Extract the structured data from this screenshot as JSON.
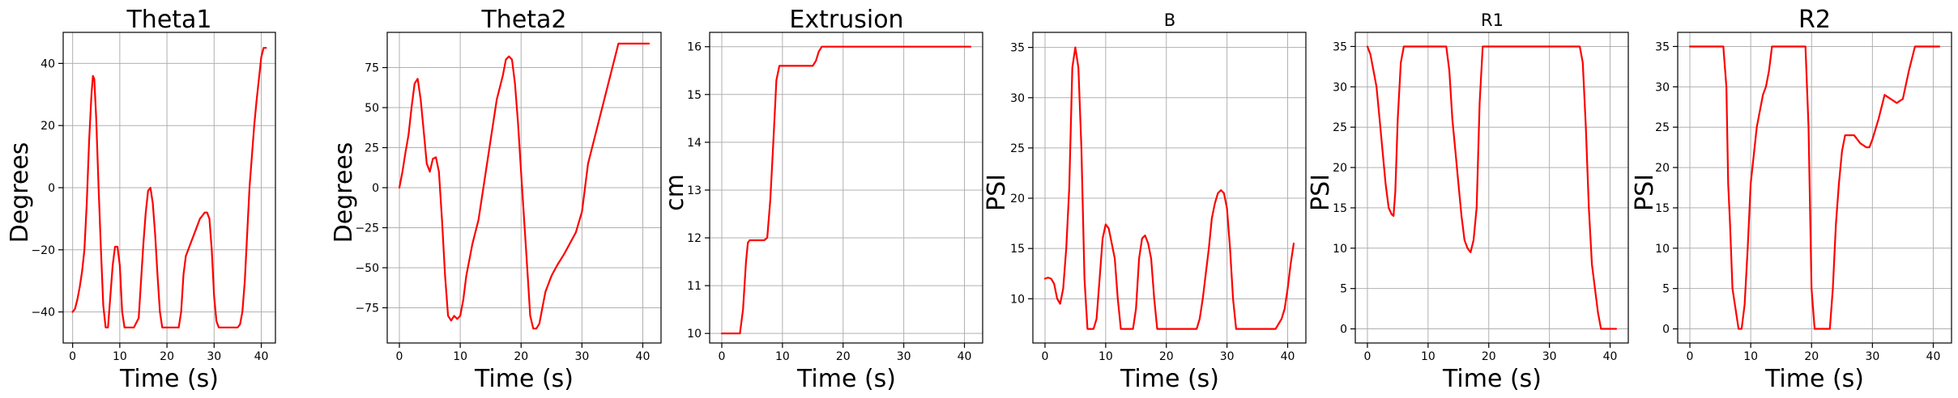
{
  "figure": {
    "line_color": "#ff0000",
    "grid_color": "#b0b0b0"
  },
  "chart_data": [
    {
      "type": "line",
      "title": "Theta1",
      "xlabel": "Time (s)",
      "ylabel": "Degrees",
      "xlim": [
        -2,
        43
      ],
      "ylim": [
        -50,
        50
      ],
      "grid": true,
      "xticks": [
        0,
        10,
        20,
        30,
        40
      ],
      "yticks": [
        -40,
        -20,
        0,
        20,
        40
      ],
      "ytick_labels": [
        "−40",
        "−20",
        "0",
        "20",
        "40"
      ],
      "series": [
        {
          "x": [
            0,
            0.5,
            1,
            1.5,
            2,
            2.5,
            3,
            3.5,
            4,
            4.3,
            4.6,
            5,
            5.5,
            6,
            6.5,
            7,
            7.5,
            8,
            8.5,
            9,
            9.5,
            10,
            10.5,
            11,
            11.5,
            12,
            13,
            14,
            14.5,
            15,
            15.5,
            16,
            16.5,
            17,
            17.5,
            18,
            18.5,
            19,
            20,
            21,
            22,
            22.5,
            23,
            23.5,
            24,
            25,
            26,
            27,
            27.5,
            28,
            28.5,
            29,
            29.5,
            30,
            30.5,
            31,
            32,
            33,
            34,
            35,
            35.5,
            36,
            36.5,
            37,
            37.5,
            38,
            38.5,
            39,
            39.5,
            40,
            40.5,
            41
          ],
          "y": [
            -40,
            -39,
            -36,
            -32,
            -27,
            -20,
            -5,
            15,
            30,
            36,
            35,
            22,
            0,
            -20,
            -38,
            -45,
            -45,
            -35,
            -25,
            -19,
            -19,
            -25,
            -40,
            -45,
            -45,
            -45,
            -45,
            -42,
            -30,
            -18,
            -8,
            -1,
            0,
            -5,
            -15,
            -28,
            -40,
            -45,
            -45,
            -45,
            -45,
            -45,
            -40,
            -28,
            -22,
            -18,
            -14,
            -10,
            -9,
            -8,
            -8,
            -10,
            -20,
            -35,
            -43,
            -45,
            -45,
            -45,
            -45,
            -45,
            -44,
            -40,
            -30,
            -15,
            0,
            10,
            20,
            28,
            35,
            42,
            45,
            45
          ]
        }
      ]
    },
    {
      "type": "line",
      "title": "Theta2",
      "xlabel": "Time (s)",
      "ylabel": "Degrees",
      "xlim": [
        -2,
        43
      ],
      "ylim": [
        -97,
        97
      ],
      "grid": true,
      "xticks": [
        0,
        10,
        20,
        30,
        40
      ],
      "yticks": [
        -75,
        -50,
        -25,
        0,
        25,
        50,
        75
      ],
      "ytick_labels": [
        "−75",
        "−50",
        "−25",
        "0",
        "25",
        "50",
        "75"
      ],
      "series": [
        {
          "x": [
            0,
            0.5,
            1,
            1.5,
            2,
            2.5,
            3,
            3.5,
            4,
            4.5,
            5,
            5.5,
            6,
            6.5,
            7,
            7.5,
            8,
            8.5,
            9,
            9.5,
            10,
            10.5,
            11,
            12,
            13,
            14,
            15,
            16,
            17,
            17.5,
            18,
            18.5,
            19,
            19.5,
            20,
            20.5,
            21,
            21.5,
            22,
            22.5,
            23,
            23.5,
            24,
            25,
            26,
            27,
            28,
            29,
            30,
            31,
            32,
            33,
            34,
            35,
            36,
            36.5,
            37,
            38,
            39,
            40,
            41
          ],
          "y": [
            0,
            10,
            22,
            33,
            50,
            65,
            68,
            55,
            35,
            15,
            10,
            18,
            19,
            10,
            -20,
            -55,
            -80,
            -83,
            -80,
            -82,
            -80,
            -70,
            -55,
            -35,
            -20,
            5,
            30,
            55,
            70,
            80,
            82,
            80,
            65,
            40,
            10,
            -20,
            -50,
            -80,
            -88,
            -88,
            -85,
            -75,
            -65,
            -55,
            -48,
            -42,
            -35,
            -28,
            -15,
            15,
            30,
            45,
            60,
            75,
            90,
            90,
            90,
            90,
            90,
            90,
            90
          ]
        }
      ]
    },
    {
      "type": "line",
      "title": "Extrusion",
      "xlabel": "Time (s)",
      "ylabel": "cm",
      "xlim": [
        -2,
        43
      ],
      "ylim": [
        9.8,
        16.3
      ],
      "grid": true,
      "xticks": [
        0,
        10,
        20,
        30,
        40
      ],
      "yticks": [
        10,
        11,
        12,
        13,
        14,
        15,
        16
      ],
      "ytick_labels": [
        "10",
        "11",
        "12",
        "13",
        "14",
        "15",
        "16"
      ],
      "series": [
        {
          "x": [
            0,
            1,
            2,
            3,
            3.5,
            4,
            4.3,
            4.6,
            5,
            6,
            7,
            7.5,
            8,
            8.5,
            9,
            9.5,
            10,
            11,
            12,
            13,
            14,
            15,
            15.5,
            16,
            16.5,
            17,
            20,
            25,
            30,
            35,
            40,
            41
          ],
          "y": [
            10,
            10,
            10,
            10,
            10.5,
            11.5,
            11.9,
            11.95,
            11.95,
            11.95,
            11.95,
            12,
            12.8,
            14,
            15.3,
            15.6,
            15.6,
            15.6,
            15.6,
            15.6,
            15.6,
            15.6,
            15.7,
            15.9,
            16,
            16,
            16,
            16,
            16,
            16,
            16,
            16
          ]
        }
      ]
    },
    {
      "type": "line",
      "title": "B",
      "xlabel": "Time (s)",
      "ylabel": "PSI",
      "xlim": [
        -2,
        43
      ],
      "ylim": [
        5.6,
        36.5
      ],
      "grid": true,
      "xticks": [
        0,
        10,
        20,
        30,
        40
      ],
      "yticks": [
        10,
        15,
        20,
        25,
        30,
        35
      ],
      "ytick_labels": [
        "10",
        "15",
        "20",
        "25",
        "30",
        "35"
      ],
      "series": [
        {
          "x": [
            0,
            0.5,
            1,
            1.5,
            2,
            2.5,
            3,
            3.5,
            4,
            4.5,
            5,
            5.5,
            6,
            6.5,
            7,
            7.5,
            8,
            8.5,
            9,
            9.5,
            10,
            10.5,
            11,
            11.5,
            12,
            12.5,
            13,
            14,
            14.5,
            15,
            15.5,
            16,
            16.5,
            17,
            17.5,
            18,
            18.5,
            19,
            19.5,
            20,
            21,
            22,
            23,
            24,
            25,
            25.5,
            26,
            27,
            27.5,
            28,
            28.5,
            29,
            29.5,
            30,
            30.5,
            31,
            31.5,
            32,
            33,
            34,
            35,
            36,
            37,
            38,
            38.5,
            39,
            39.5,
            40,
            40.5,
            41
          ],
          "y": [
            12,
            12.1,
            12,
            11.5,
            10,
            9.5,
            11,
            15,
            21,
            33,
            35,
            33,
            25,
            12,
            7,
            7,
            7,
            8,
            12,
            16,
            17.4,
            17,
            15.5,
            14,
            10,
            7,
            7,
            7,
            7,
            9,
            14,
            16,
            16.3,
            15.5,
            14,
            10,
            7,
            7,
            7,
            7,
            7,
            7,
            7,
            7,
            7,
            8,
            10,
            15,
            18,
            19.5,
            20.5,
            20.8,
            20.5,
            19,
            15,
            10,
            7,
            7,
            7,
            7,
            7,
            7,
            7,
            7,
            7.5,
            8,
            9,
            11,
            13.5,
            15.5
          ]
        }
      ]
    },
    {
      "type": "line",
      "title": "R1",
      "xlabel": "Time (s)",
      "ylabel": "PSI",
      "xlim": [
        -2,
        43
      ],
      "ylim": [
        -1.75,
        36.75
      ],
      "grid": true,
      "xticks": [
        0,
        10,
        20,
        30,
        40
      ],
      "yticks": [
        0,
        5,
        10,
        15,
        20,
        25,
        30,
        35
      ],
      "ytick_labels": [
        "0",
        "5",
        "10",
        "15",
        "20",
        "25",
        "30",
        "35"
      ],
      "series": [
        {
          "x": [
            0,
            0.5,
            1,
            1.5,
            2,
            2.5,
            3,
            3.5,
            4,
            4.3,
            4.6,
            5,
            5.5,
            6,
            7,
            8,
            9,
            10,
            11,
            12,
            13,
            13.5,
            14,
            14.5,
            15,
            15.5,
            16,
            16.5,
            17,
            17.5,
            18,
            18.5,
            19,
            20,
            22,
            25,
            28,
            30,
            32,
            34,
            35,
            35.5,
            36,
            36.5,
            37,
            38,
            38.5,
            39,
            40,
            41
          ],
          "y": [
            35,
            34,
            32,
            30,
            26,
            22,
            18,
            15,
            14.2,
            14,
            17,
            26,
            33,
            35,
            35,
            35,
            35,
            35,
            35,
            35,
            35,
            32,
            26,
            22,
            18,
            14,
            11,
            10,
            9.5,
            11,
            15,
            28,
            35,
            35,
            35,
            35,
            35,
            35,
            35,
            35,
            35,
            33,
            25,
            15,
            8,
            2,
            0,
            0,
            0,
            0
          ]
        }
      ]
    },
    {
      "type": "line",
      "title": "R2",
      "xlabel": "Time (s)",
      "ylabel": "PSI",
      "xlim": [
        -2,
        43
      ],
      "ylim": [
        -1.75,
        36.75
      ],
      "grid": true,
      "xticks": [
        0,
        10,
        20,
        30,
        40
      ],
      "yticks": [
        0,
        5,
        10,
        15,
        20,
        25,
        30,
        35
      ],
      "ytick_labels": [
        "0",
        "5",
        "10",
        "15",
        "20",
        "25",
        "30",
        "35"
      ],
      "series": [
        {
          "x": [
            0,
            2,
            4,
            5,
            5.5,
            6,
            6.3,
            6.6,
            7,
            8,
            8.5,
            9,
            9.5,
            10,
            11,
            12,
            12.5,
            13,
            13.5,
            14,
            15,
            16,
            17,
            18,
            19,
            19.5,
            20,
            20.5,
            21,
            22,
            23,
            23.5,
            24,
            24.5,
            25,
            25.5,
            26,
            27,
            28,
            29,
            29.5,
            30,
            31,
            32,
            33,
            34,
            35,
            36,
            37,
            38,
            39,
            40,
            41
          ],
          "y": [
            35,
            35,
            35,
            35,
            35,
            30,
            18,
            13,
            5,
            0,
            0,
            3,
            10,
            18,
            25,
            29,
            30,
            32,
            35,
            35,
            35,
            35,
            35,
            35,
            35,
            25,
            5,
            0,
            0,
            0,
            0,
            5,
            13,
            18,
            22,
            24,
            24,
            24,
            23,
            22.5,
            22.5,
            23.5,
            26,
            29,
            28.5,
            28,
            28.5,
            32,
            35,
            35,
            35,
            35,
            35
          ]
        }
      ]
    }
  ]
}
